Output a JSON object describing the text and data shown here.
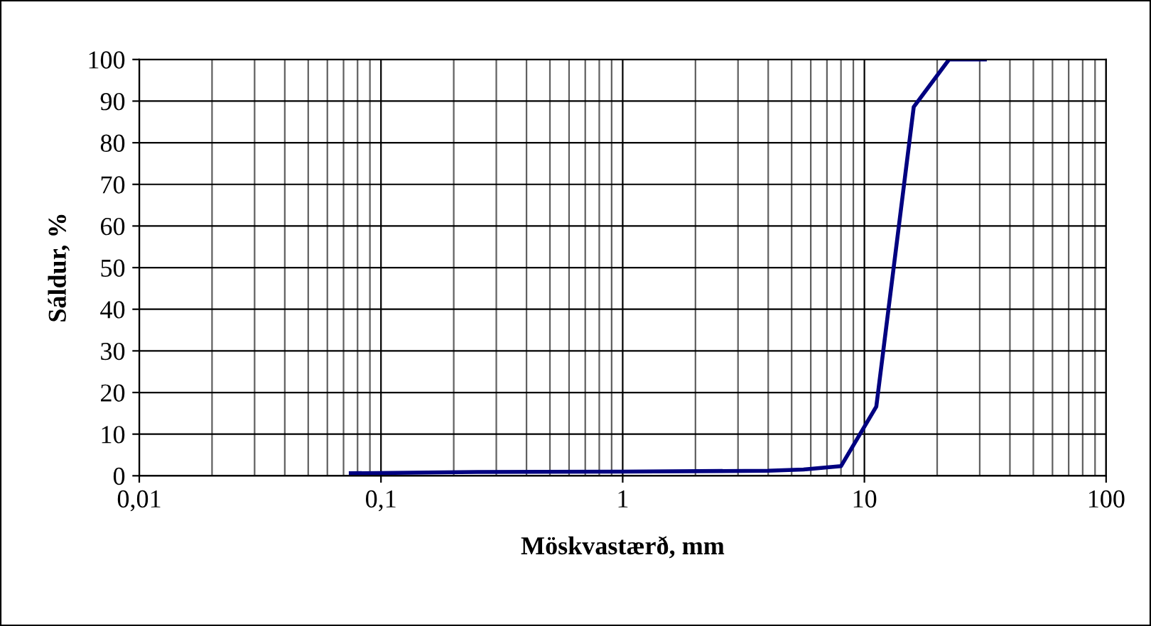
{
  "chart_data": {
    "type": "line",
    "xlabel": "Möskvastærð, mm",
    "ylabel": "Sáldur, %",
    "log": "x",
    "grid": true,
    "marker": "none",
    "line_style": "solid",
    "x": [
      0.075,
      0.25,
      1,
      4,
      5.6,
      8,
      11.2,
      16,
      22.4,
      31.5
    ],
    "series": [
      {
        "color": "#000080",
        "values": [
          0.6,
          0.9,
          1.0,
          1.2,
          1.5,
          2.3,
          16.6,
          88.6,
          100,
          100
        ]
      }
    ],
    "xlim": [
      0.01,
      100
    ],
    "xticks": [
      {
        "value": 0.01,
        "label": "0,01"
      },
      {
        "value": 0.1,
        "label": "0,1"
      },
      1,
      10,
      100
    ],
    "ylim": [
      0,
      100
    ],
    "yticks": [
      0,
      10,
      20,
      30,
      40,
      50,
      60,
      70,
      80,
      90,
      100
    ]
  }
}
